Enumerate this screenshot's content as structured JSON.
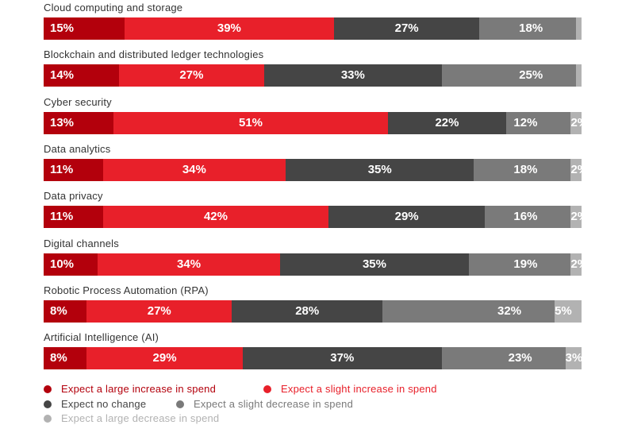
{
  "chart_data": {
    "type": "stacked-bar-horizontal",
    "title": "",
    "unit": "%",
    "series": [
      {
        "name": "Expect a large increase in spend",
        "color": "#b3000c",
        "text_color": "#b3000c"
      },
      {
        "name": "Expect a slight increase in spend",
        "color": "#e8202a",
        "text_color": "#e8202a"
      },
      {
        "name": "Expect no change",
        "color": "#454545",
        "text_color": "#454545"
      },
      {
        "name": "Expect a slight decrease in spend",
        "color": "#7a7a7a",
        "text_color": "#7a7a7a"
      },
      {
        "name": "Expect a large decrease in spend",
        "color": "#b2b2b2",
        "text_color": "#b2b2b2"
      }
    ],
    "categories": [
      {
        "name": "Cloud computing and storage",
        "values": [
          15,
          39,
          27,
          18,
          1
        ],
        "labels": [
          "15%",
          "39%",
          "27%",
          "18%",
          ""
        ]
      },
      {
        "name": "Blockchain and distributed ledger technologies",
        "values": [
          14,
          27,
          33,
          25,
          1
        ],
        "labels": [
          "14%",
          "27%",
          "33%",
          "25%",
          ""
        ]
      },
      {
        "name": "Cyber security",
        "values": [
          13,
          51,
          22,
          12,
          2
        ],
        "labels": [
          "13%",
          "51%",
          "22%",
          "12%",
          "2%"
        ]
      },
      {
        "name": "Data analytics",
        "values": [
          11,
          34,
          35,
          18,
          2
        ],
        "labels": [
          "11%",
          "34%",
          "35%",
          "18%",
          "2%"
        ]
      },
      {
        "name": "Data privacy",
        "values": [
          11,
          42,
          29,
          16,
          2
        ],
        "labels": [
          "11%",
          "42%",
          "29%",
          "16%",
          "2%"
        ]
      },
      {
        "name": "Digital channels",
        "values": [
          10,
          34,
          35,
          19,
          2
        ],
        "labels": [
          "10%",
          "34%",
          "35%",
          "19%",
          "2%"
        ]
      },
      {
        "name": "Robotic Process Automation (RPA)",
        "values": [
          8,
          27,
          28,
          32,
          5
        ],
        "labels": [
          "8%",
          "27%",
          "28%",
          "32%",
          "5%"
        ]
      },
      {
        "name": "Artificial Intelligence (AI)",
        "values": [
          8,
          29,
          37,
          23,
          3
        ],
        "labels": [
          "8%",
          "29%",
          "37%",
          "23%",
          "3%"
        ]
      }
    ]
  }
}
